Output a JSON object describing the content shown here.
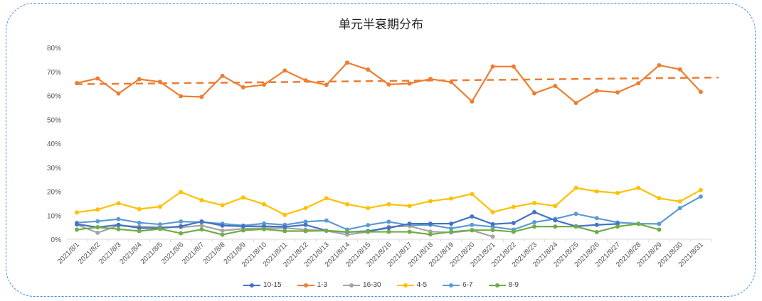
{
  "chart_data": {
    "type": "line",
    "title": "单元半衰期分布",
    "categories": [
      "2021/8/1",
      "2021/8/2",
      "2021/8/3",
      "2021/8/4",
      "2021/8/5",
      "2021/8/6",
      "2021/8/7",
      "2021/8/8",
      "2021/8/9",
      "2021/8/10",
      "2021/8/11",
      "2021/8/12",
      "2021/8/13",
      "2021/8/14",
      "2021/8/15",
      "2021/8/16",
      "2021/8/17",
      "2021/8/18",
      "2021/8/19",
      "2021/8/20",
      "2021/8/21",
      "2021/8/22",
      "2021/8/23",
      "2021/8/24",
      "2021/8/25",
      "2021/8/26",
      "2021/8/27",
      "2021/8/28",
      "2021/8/29",
      "2021/8/30",
      "2021/8/31"
    ],
    "y_ticks": [
      "0%",
      "10%",
      "20%",
      "30%",
      "40%",
      "50%",
      "60%",
      "70%",
      "80%"
    ],
    "ylim": [
      0,
      80
    ],
    "legend_position": "bottom",
    "series": [
      {
        "name": "10-15",
        "color": "#4472c4",
        "values": [
          6.3,
          5.0,
          6.0,
          4.7,
          4.6,
          5.4,
          7.4,
          5.7,
          5.4,
          5.4,
          5.2,
          6.0,
          3.6,
          3.0,
          3.4,
          4.7,
          6.5,
          6.5,
          6.5,
          9.5,
          6.3,
          6.8,
          11.3,
          7.9,
          5.4,
          6.0,
          6.4,
          null,
          null,
          null,
          null
        ]
      },
      {
        "name": "1-3",
        "color": "#ed7d31",
        "values": [
          65.2,
          67.1,
          60.8,
          66.8,
          65.7,
          59.7,
          59.4,
          68.2,
          63.4,
          64.5,
          70.4,
          66.3,
          64.4,
          73.7,
          70.8,
          64.6,
          65.0,
          66.9,
          65.6,
          57.5,
          72.1,
          72.1,
          60.9,
          64.0,
          56.9,
          62.0,
          61.3,
          65.1,
          72.6,
          70.9,
          61.5
        ],
        "trendline": {
          "style": "dashed linear",
          "start": 64.7,
          "end": 67.5
        }
      },
      {
        "name": "16-30",
        "color": "#a5a5a5",
        "values": [
          6.1,
          2.7,
          5.7,
          5.3,
          5.1,
          5.0,
          5.7,
          3.6,
          4.4,
          4.6,
          4.7,
          4.0,
          3.5,
          1.9,
          3.1,
          5.2,
          5.5,
          3.2,
          2.8,
          3.7,
          1.1,
          null,
          null,
          null,
          null,
          null,
          null,
          null,
          null,
          null,
          null
        ]
      },
      {
        "name": "4-5",
        "color": "#ffc000",
        "values": [
          11.2,
          12.4,
          15.0,
          12.6,
          13.6,
          19.7,
          16.3,
          14.2,
          17.4,
          14.6,
          10.2,
          13.0,
          17.1,
          14.6,
          13.0,
          14.6,
          13.9,
          15.9,
          17.0,
          18.9,
          11.3,
          13.5,
          15.1,
          13.9,
          21.4,
          20.0,
          19.3,
          21.4,
          17.1,
          15.8,
          20.5
        ]
      },
      {
        "name": "6-7",
        "color": "#5b9bd5",
        "values": [
          6.9,
          7.5,
          8.4,
          6.9,
          6.2,
          7.4,
          7.1,
          6.5,
          5.7,
          6.6,
          6.0,
          7.3,
          7.8,
          4.0,
          5.9,
          7.3,
          5.8,
          6.0,
          4.5,
          6.0,
          5.2,
          4.0,
          7.1,
          8.5,
          10.6,
          8.8,
          7.0,
          6.5,
          6.4,
          13.0,
          17.8
        ]
      },
      {
        "name": "8-9",
        "color": "#70ad47",
        "values": [
          4.0,
          5.0,
          4.2,
          3.4,
          4.3,
          2.5,
          4.1,
          1.9,
          3.7,
          4.2,
          3.4,
          3.4,
          3.6,
          3.1,
          3.1,
          3.1,
          3.1,
          2.0,
          3.1,
          3.8,
          3.8,
          3.1,
          5.3,
          5.3,
          5.3,
          3.0,
          5.3,
          6.4,
          4.0,
          null,
          null
        ]
      }
    ]
  }
}
